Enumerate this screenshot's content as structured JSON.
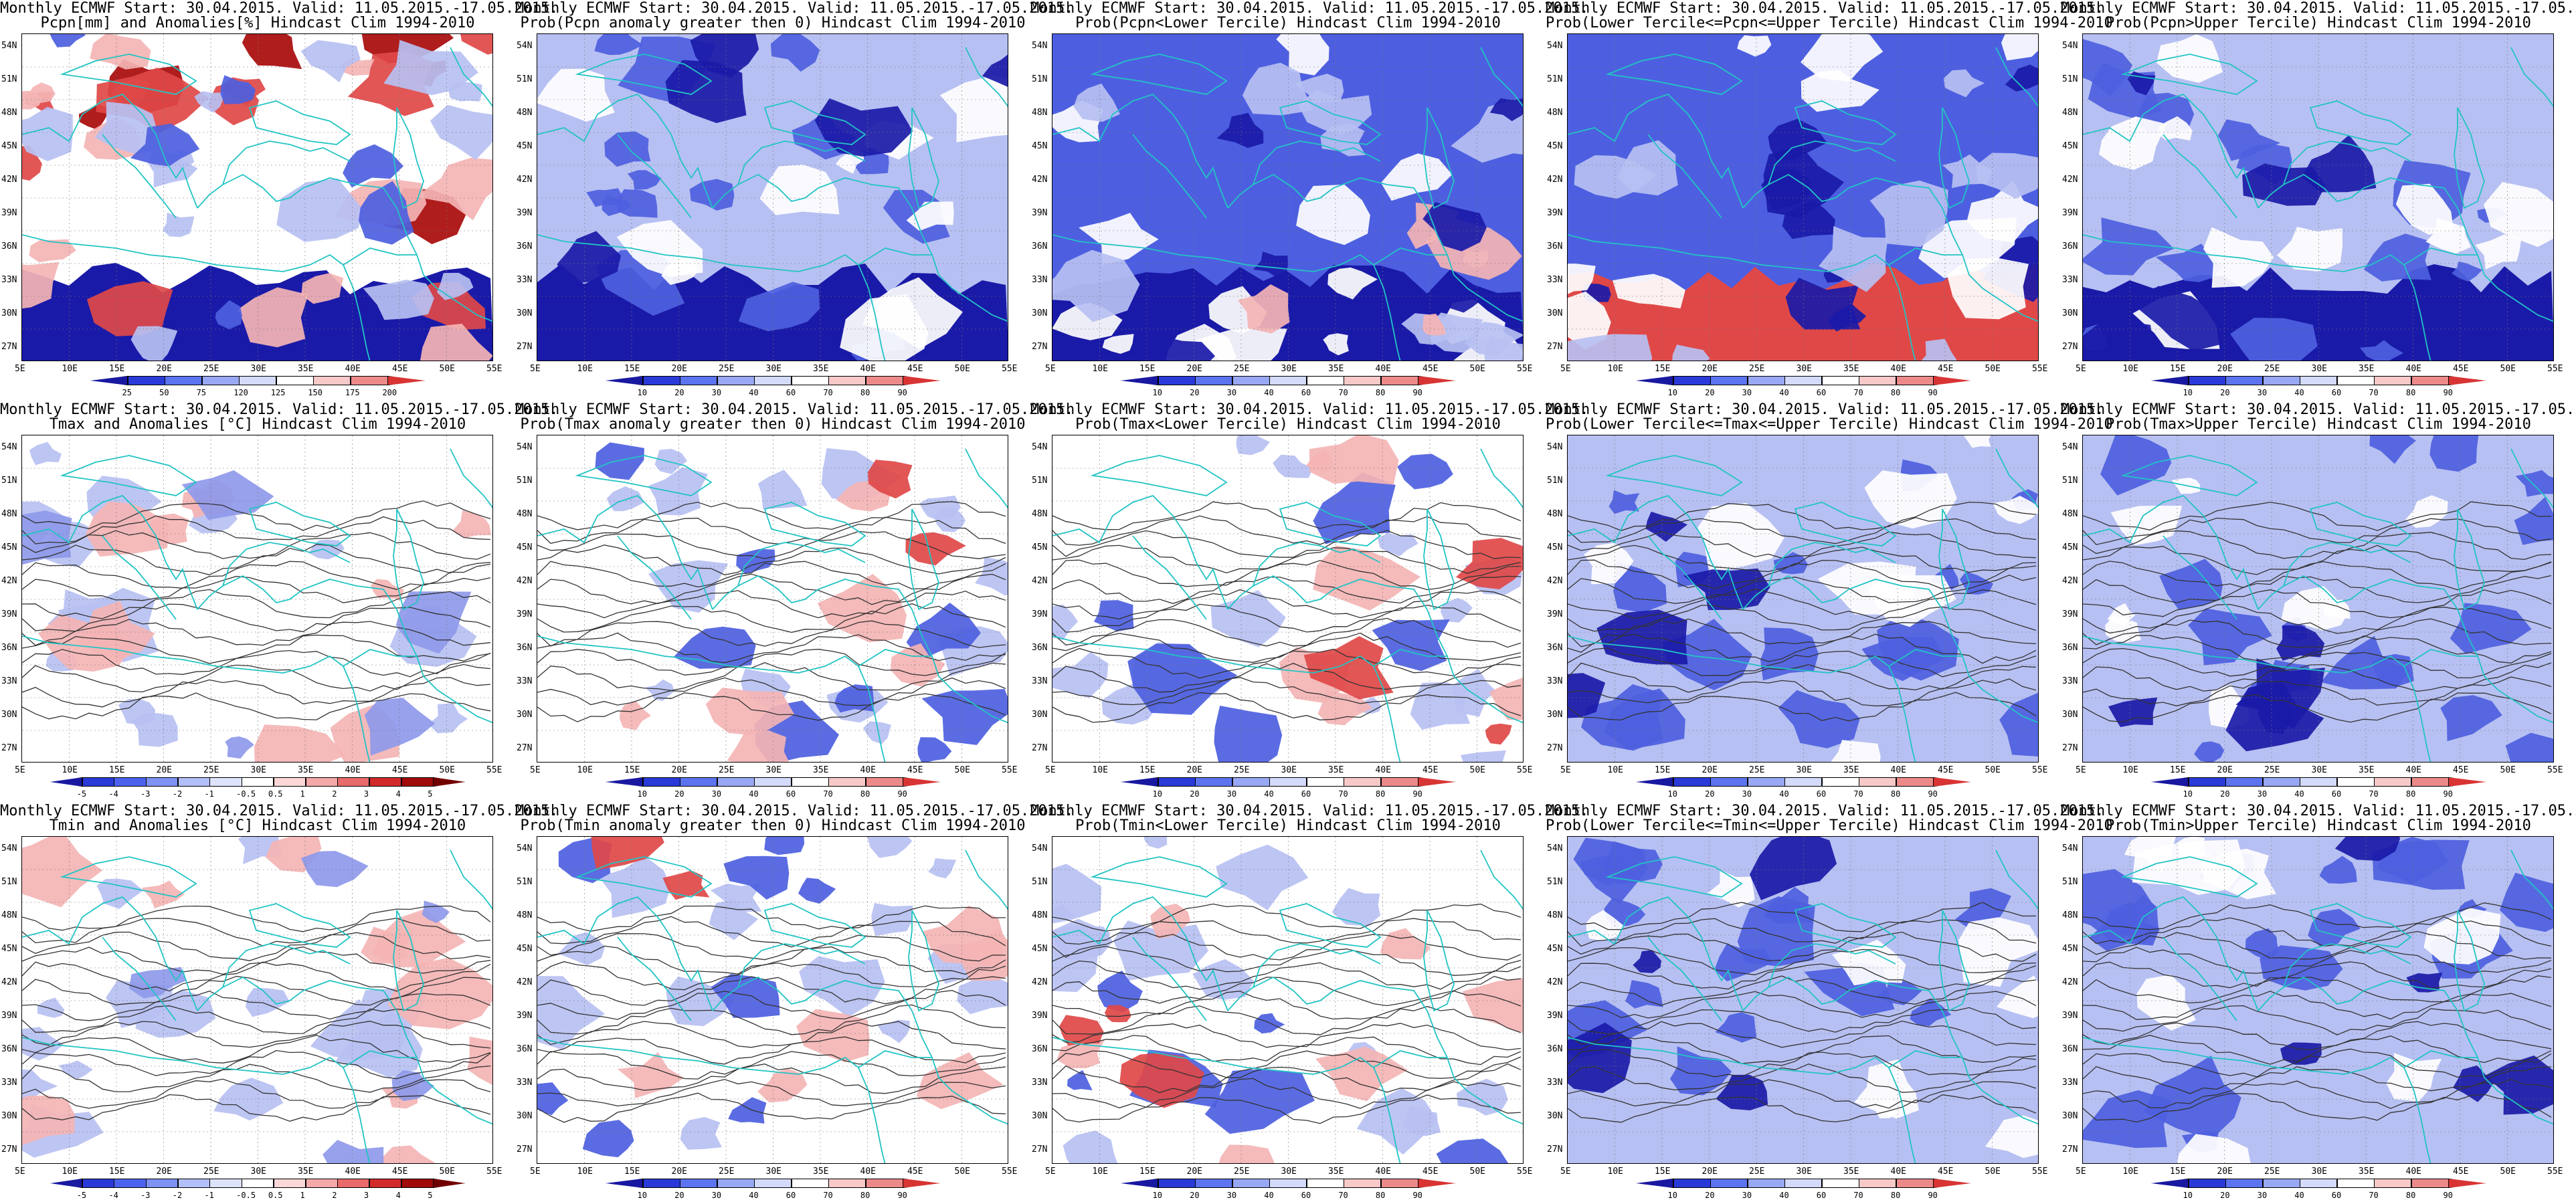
{
  "header_line": "Monthly ECMWF Start: 30.04.2015. Valid: 11.05.2015.-17.05.2015.",
  "panels": [
    {
      "subtitle": "Pcpn[mm] and Anomalies[%] Hindcast Clim 1994-2010",
      "field": "pcpn_anom",
      "colorbar": [
        "25",
        "50",
        "75",
        "120",
        "125",
        "150",
        "175",
        "200"
      ]
    },
    {
      "subtitle": "Prob(Pcpn anomaly greater then 0) Hindcast Clim 1994-2010",
      "field": "pcpn_p0",
      "colorbar": [
        "10",
        "20",
        "30",
        "40",
        "60",
        "70",
        "80",
        "90"
      ]
    },
    {
      "subtitle": "Prob(Pcpn<Lower Tercile) Hindcast Clim 1994-2010",
      "field": "pcpn_low",
      "colorbar": [
        "10",
        "20",
        "30",
        "40",
        "60",
        "70",
        "80",
        "90"
      ]
    },
    {
      "subtitle": "Prob(Lower Tercile<=Pcpn<=Upper Tercile) Hindcast Clim 1994-2010",
      "field": "pcpn_mid",
      "colorbar": [
        "10",
        "20",
        "30",
        "40",
        "60",
        "70",
        "80",
        "90"
      ]
    },
    {
      "subtitle": "Prob(Pcpn>Upper Tercile) Hindcast Clim 1994-2010",
      "field": "pcpn_up",
      "colorbar": [
        "10",
        "20",
        "30",
        "40",
        "60",
        "70",
        "80",
        "90"
      ]
    },
    {
      "subtitle": "Tmax and Anomalies [°C] Hindcast Clim 1994-2010",
      "field": "tmax_anom",
      "colorbar": [
        "-5",
        "-4",
        "-3",
        "-2",
        "-1",
        "-0.5",
        "0.5",
        "1",
        "2",
        "3",
        "4",
        "5"
      ]
    },
    {
      "subtitle": "Prob(Tmax anomaly greater then 0) Hindcast Clim 1994-2010",
      "field": "tmax_p0",
      "colorbar": [
        "10",
        "20",
        "30",
        "40",
        "60",
        "70",
        "80",
        "90"
      ]
    },
    {
      "subtitle": "Prob(Tmax<Lower Tercile) Hindcast Clim 1994-2010",
      "field": "tmax_low",
      "colorbar": [
        "10",
        "20",
        "30",
        "40",
        "60",
        "70",
        "80",
        "90"
      ]
    },
    {
      "subtitle": "Prob(Lower Tercile<=Tmax<=Upper Tercile) Hindcast Clim 1994-2010",
      "field": "tmax_mid",
      "colorbar": [
        "10",
        "20",
        "30",
        "40",
        "60",
        "70",
        "80",
        "90"
      ]
    },
    {
      "subtitle": "Prob(Tmax>Upper Tercile) Hindcast Clim 1994-2010",
      "field": "tmax_up",
      "colorbar": [
        "10",
        "20",
        "30",
        "40",
        "60",
        "70",
        "80",
        "90"
      ]
    },
    {
      "subtitle": "Tmin and Anomalies [°C] Hindcast Clim 1994-2010",
      "field": "tmin_anom",
      "colorbar": [
        "-5",
        "-4",
        "-3",
        "-2",
        "-1",
        "-0.5",
        "0.5",
        "1",
        "2",
        "3",
        "4",
        "5"
      ]
    },
    {
      "subtitle": "Prob(Tmin anomaly greater then 0) Hindcast Clim 1994-2010",
      "field": "tmin_p0",
      "colorbar": [
        "10",
        "20",
        "30",
        "40",
        "60",
        "70",
        "80",
        "90"
      ]
    },
    {
      "subtitle": "Prob(Tmin<Lower Tercile) Hindcast Clim 1994-2010",
      "field": "tmin_low",
      "colorbar": [
        "10",
        "20",
        "30",
        "40",
        "60",
        "70",
        "80",
        "90"
      ]
    },
    {
      "subtitle": "Prob(Lower Tercile<=Tmin<=Upper Tercile) Hindcast Clim 1994-2010",
      "field": "tmin_mid",
      "colorbar": [
        "10",
        "20",
        "30",
        "40",
        "60",
        "70",
        "80",
        "90"
      ]
    },
    {
      "subtitle": "Prob(Tmin>Upper Tercile) Hindcast Clim 1994-2010",
      "field": "tmin_up",
      "colorbar": [
        "10",
        "20",
        "30",
        "40",
        "60",
        "70",
        "80",
        "90"
      ]
    }
  ],
  "lat_labels": [
    "54N",
    "51N",
    "48N",
    "45N",
    "42N",
    "39N",
    "36N",
    "33N",
    "30N",
    "27N"
  ],
  "lon_labels": [
    "5E",
    "10E",
    "15E",
    "20E",
    "25E",
    "30E",
    "35E",
    "40E",
    "45E",
    "50E",
    "55E"
  ],
  "colors": {
    "coast": "#22c4c4",
    "contour": "#333333",
    "blue_dark": "#1a1aa8",
    "blue_mid": "#4d5fe0",
    "blue_light": "#b7c0f2",
    "red_light": "#f4b4b4",
    "red_mid": "#e04848",
    "red_dark": "#a80a0a"
  }
}
